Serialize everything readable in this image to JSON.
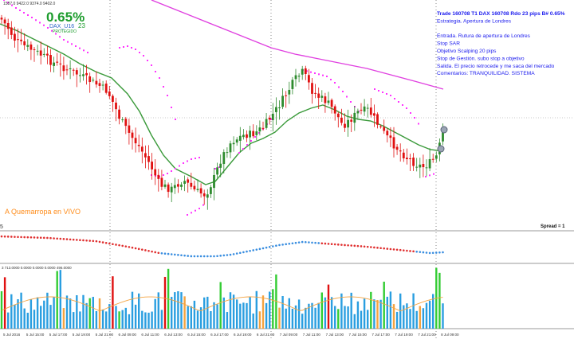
{
  "header": {
    "ohlc_line": "1587.0 9422.0 9374.0 9402.0",
    "percent": "0.65%",
    "symbol": "DAX_U16",
    "pips": "23",
    "protected_label": "PROTEGIDO"
  },
  "trade_info": {
    "lines": [
      "Trade 160708 T1 DAX 160708 Rdo 23 pips B# 0.65%",
      "Estrategia. Apertura de Londres",
      "",
      "Entrada. Rutura de apertura de Londres",
      "Stop SAR",
      "Objetivo  Scalping 20 pips",
      "Stop de Gestión. subo stop a objetivo",
      "Salida. El precio retrocede y me saca del mercado",
      "Comentarios: TRANQUILIDAD. SISTEMA"
    ]
  },
  "watermark": "A Quemarropa en VIVO",
  "spread_label": "Spread = 1",
  "osc_label": "5",
  "volume_label": "3 713.0000 0.0000 0.0000 0.0000 496.0000",
  "x_axis_labels": [
    "5 Jul 2016",
    "5 Jul 15:00",
    "5 Jul 17:00",
    "5 Jul 19:00",
    "5 Jul 21:00",
    "6 Jul 09:00",
    "6 Jul 11:00",
    "6 Jul 13:00",
    "6 Jul 15:00",
    "6 Jul 17:00",
    "6 Jul 19:00",
    "6 Jul 21:00",
    "7 Jul 09:00",
    "7 Jul 11:00",
    "7 Jul 13:00",
    "7 Jul 15:00",
    "7 Jul 17:00",
    "7 Jul 19:00",
    "7 Jul 21:00",
    "8 Jul 09:00"
  ],
  "colors": {
    "bull": "#2e8b2e",
    "bear": "#e01010",
    "ma_green": "#3a9a3a",
    "ma_magenta": "#e040e0",
    "sar": "#ff33ff",
    "trade_text": "#1a1aee",
    "percent_green": "#1c9c2c",
    "watermark": "#ff8c1a",
    "vol_blue": "#2a9ee0",
    "vol_green": "#33cc33",
    "vol_red": "#e01010",
    "vol_orange": "#f4a340"
  }
}
